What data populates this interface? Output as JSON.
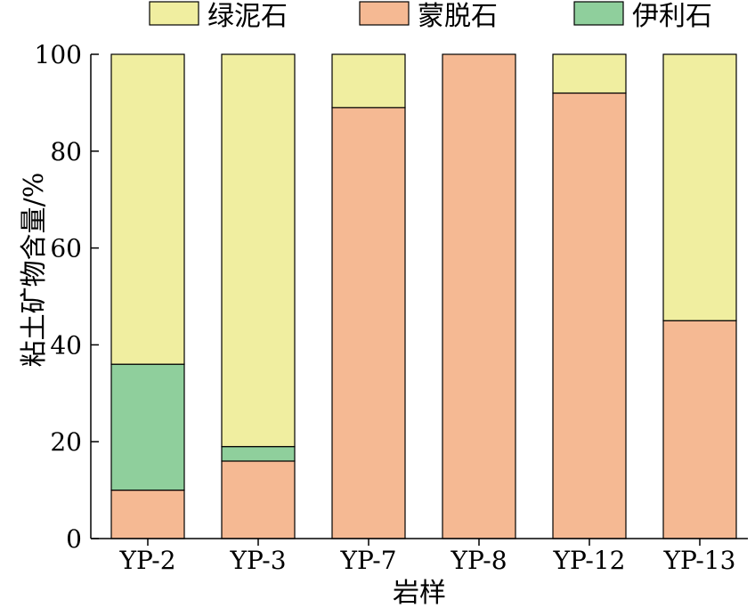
{
  "chart_data": {
    "type": "bar",
    "stacked": true,
    "title": "",
    "xlabel": "岩样",
    "ylabel": "粘土矿物含量/%",
    "ylim": [
      0,
      100
    ],
    "yticks": [
      0,
      20,
      40,
      60,
      80,
      100
    ],
    "grid": false,
    "legend_position": "top",
    "categories": [
      "YP-2",
      "YP-3",
      "YP-7",
      "YP-8",
      "YP-12",
      "YP-13"
    ],
    "series": [
      {
        "name": "蒙脱石",
        "color": "#F5B993",
        "values": [
          10,
          16,
          89,
          100,
          92,
          45
        ]
      },
      {
        "name": "伊利石",
        "color": "#8FCF9C",
        "values": [
          26,
          3,
          0,
          0,
          0,
          0
        ]
      },
      {
        "name": "绿泥石",
        "color": "#F0EEA0",
        "values": [
          64,
          81,
          11,
          0,
          8,
          55
        ]
      }
    ],
    "legend_order": [
      "绿泥石",
      "蒙脱石",
      "伊利石"
    ]
  }
}
